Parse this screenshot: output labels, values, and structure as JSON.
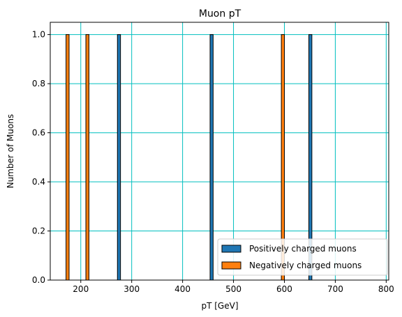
{
  "chart_data": {
    "type": "bar",
    "title": "Muon pT",
    "xlabel": "pT [GeV]",
    "ylabel": "Number of Muons",
    "xlim": [
      140,
      805
    ],
    "ylim": [
      0,
      1.05
    ],
    "xticks": [
      200,
      300,
      400,
      500,
      600,
      700,
      800
    ],
    "yticks": [
      0.0,
      0.2,
      0.4,
      0.6,
      0.8,
      1.0
    ],
    "xtick_labels": [
      "200",
      "300",
      "400",
      "500",
      "600",
      "700",
      "800"
    ],
    "ytick_labels": [
      "0.0",
      "0.2",
      "0.4",
      "0.6",
      "0.8",
      "1.0"
    ],
    "grid": true,
    "grid_color": "#00bfbf",
    "legend_placement": "lower-right",
    "series": [
      {
        "name": "Positively charged muons",
        "color": "#1f77b4",
        "bins": [
          [
            272,
            278
          ],
          [
            454,
            460
          ],
          [
            648,
            654
          ]
        ],
        "values": [
          1,
          1,
          1
        ]
      },
      {
        "name": "Negatively charged muons",
        "color": "#ff7f0e",
        "bins": [
          [
            171,
            177
          ],
          [
            210,
            216
          ],
          [
            594,
            600
          ]
        ],
        "values": [
          1,
          1,
          1
        ]
      }
    ]
  }
}
